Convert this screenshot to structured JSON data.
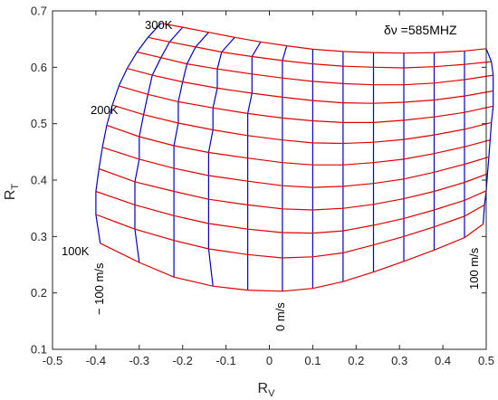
{
  "chart_data": {
    "type": "line",
    "title": "",
    "xlabel_main": "R",
    "xlabel_sub": "V",
    "ylabel_main": "R",
    "ylabel_sub": "T",
    "xlim": [
      -0.5,
      0.5
    ],
    "ylim": [
      0.1,
      0.7
    ],
    "xticks": [
      "-0.5",
      "-0.4",
      "-0.3",
      "-0.2",
      "-0.1",
      "0",
      "0.1",
      "0.2",
      "0.3",
      "0.4",
      "0.5"
    ],
    "yticks": [
      "0.1",
      "0.2",
      "0.3",
      "0.4",
      "0.5",
      "0.6",
      "0.7"
    ],
    "grid": false,
    "colors": {
      "temperature_lines": "#e00000",
      "velocity_lines": "#0000cc"
    },
    "temperature_lines": [
      {
        "name": "100K",
        "x": [
          -0.39,
          -0.3,
          -0.22,
          -0.13,
          -0.05,
          0.03,
          0.1,
          0.17,
          0.24,
          0.31,
          0.38,
          0.45,
          0.493
        ],
        "y": [
          0.288,
          0.254,
          0.228,
          0.212,
          0.205,
          0.203,
          0.208,
          0.22,
          0.237,
          0.256,
          0.276,
          0.298,
          0.322
        ]
      },
      {
        "x": [
          -0.4,
          -0.31,
          -0.22,
          -0.14,
          -0.05,
          0.03,
          0.1,
          0.17,
          0.24,
          0.31,
          0.38,
          0.45,
          0.496
        ],
        "y": [
          0.339,
          0.313,
          0.293,
          0.278,
          0.268,
          0.262,
          0.264,
          0.271,
          0.285,
          0.3,
          0.317,
          0.336,
          0.356
        ]
      },
      {
        "x": [
          -0.4,
          -0.31,
          -0.22,
          -0.14,
          -0.05,
          0.03,
          0.1,
          0.17,
          0.24,
          0.31,
          0.38,
          0.45,
          0.5
        ],
        "y": [
          0.38,
          0.356,
          0.337,
          0.323,
          0.313,
          0.307,
          0.306,
          0.31,
          0.32,
          0.332,
          0.347,
          0.364,
          0.381
        ]
      },
      {
        "x": [
          -0.393,
          -0.31,
          -0.22,
          -0.14,
          -0.05,
          0.03,
          0.1,
          0.17,
          0.24,
          0.31,
          0.38,
          0.45,
          0.503
        ],
        "y": [
          0.42,
          0.397,
          0.38,
          0.366,
          0.356,
          0.349,
          0.347,
          0.35,
          0.357,
          0.367,
          0.38,
          0.396,
          0.411
        ]
      },
      {
        "x": [
          -0.385,
          -0.3,
          -0.22,
          -0.14,
          -0.05,
          0.03,
          0.1,
          0.17,
          0.24,
          0.31,
          0.38,
          0.45,
          0.506
        ],
        "y": [
          0.458,
          0.437,
          0.421,
          0.408,
          0.398,
          0.39,
          0.387,
          0.389,
          0.394,
          0.402,
          0.414,
          0.428,
          0.441
        ]
      },
      {
        "x": [
          -0.375,
          -0.3,
          -0.22,
          -0.14,
          -0.05,
          0.03,
          0.1,
          0.17,
          0.24,
          0.31,
          0.38,
          0.45,
          0.509
        ],
        "y": [
          0.497,
          0.477,
          0.461,
          0.449,
          0.439,
          0.431,
          0.427,
          0.427,
          0.431,
          0.437,
          0.447,
          0.459,
          0.471
        ]
      },
      {
        "name": "200K",
        "x": [
          -0.362,
          -0.29,
          -0.21,
          -0.13,
          -0.05,
          0.03,
          0.1,
          0.17,
          0.24,
          0.31,
          0.38,
          0.45,
          0.512
        ],
        "y": [
          0.533,
          0.516,
          0.501,
          0.489,
          0.479,
          0.471,
          0.466,
          0.465,
          0.467,
          0.472,
          0.48,
          0.49,
          0.502
        ]
      },
      {
        "x": [
          -0.347,
          -0.28,
          -0.21,
          -0.13,
          -0.05,
          0.03,
          0.1,
          0.17,
          0.24,
          0.31,
          0.38,
          0.45,
          0.516
        ],
        "y": [
          0.567,
          0.552,
          0.539,
          0.528,
          0.518,
          0.51,
          0.505,
          0.502,
          0.502,
          0.506,
          0.512,
          0.52,
          0.531
        ]
      },
      {
        "x": [
          -0.328,
          -0.27,
          -0.2,
          -0.12,
          -0.04,
          0.03,
          0.1,
          0.17,
          0.24,
          0.31,
          0.38,
          0.45,
          0.516
        ],
        "y": [
          0.598,
          0.586,
          0.574,
          0.563,
          0.554,
          0.547,
          0.541,
          0.537,
          0.536,
          0.538,
          0.542,
          0.549,
          0.558
        ]
      },
      {
        "x": [
          -0.305,
          -0.25,
          -0.19,
          -0.12,
          -0.04,
          0.03,
          0.1,
          0.17,
          0.24,
          0.31,
          0.38,
          0.45,
          0.516
        ],
        "y": [
          0.627,
          0.617,
          0.606,
          0.597,
          0.588,
          0.581,
          0.575,
          0.571,
          0.569,
          0.569,
          0.572,
          0.578,
          0.586
        ]
      },
      {
        "x": [
          -0.28,
          -0.23,
          -0.17,
          -0.11,
          -0.04,
          0.03,
          0.1,
          0.17,
          0.24,
          0.31,
          0.38,
          0.45,
          0.512
        ],
        "y": [
          0.653,
          0.645,
          0.636,
          0.627,
          0.619,
          0.612,
          0.606,
          0.602,
          0.6,
          0.599,
          0.601,
          0.605,
          0.61
        ]
      },
      {
        "name": "300K",
        "x": [
          -0.25,
          -0.2,
          -0.14,
          -0.08,
          -0.02,
          0.04,
          0.1,
          0.17,
          0.24,
          0.31,
          0.38,
          0.45,
          0.5
        ],
        "y": [
          0.678,
          0.671,
          0.662,
          0.653,
          0.645,
          0.638,
          0.632,
          0.628,
          0.626,
          0.625,
          0.626,
          0.629,
          0.633
        ]
      }
    ],
    "velocity_lines": [
      {
        "name": "− 100 m/s",
        "x": [
          -0.39,
          -0.4,
          -0.4,
          -0.393,
          -0.385,
          -0.375,
          -0.362,
          -0.347,
          -0.328,
          -0.305,
          -0.28,
          -0.25
        ],
        "y": [
          0.288,
          0.339,
          0.38,
          0.42,
          0.458,
          0.497,
          0.533,
          0.567,
          0.598,
          0.627,
          0.653,
          0.678
        ]
      },
      {
        "x": [
          -0.3,
          -0.31,
          -0.31,
          -0.31,
          -0.3,
          -0.3,
          -0.29,
          -0.28,
          -0.27,
          -0.25,
          -0.23,
          -0.2
        ],
        "y": [
          0.254,
          0.313,
          0.356,
          0.397,
          0.437,
          0.477,
          0.516,
          0.552,
          0.586,
          0.617,
          0.645,
          0.671
        ]
      },
      {
        "x": [
          -0.22,
          -0.22,
          -0.22,
          -0.22,
          -0.22,
          -0.22,
          -0.21,
          -0.21,
          -0.2,
          -0.19,
          -0.17,
          -0.14
        ],
        "y": [
          0.228,
          0.293,
          0.337,
          0.38,
          0.421,
          0.461,
          0.501,
          0.539,
          0.574,
          0.606,
          0.636,
          0.662
        ]
      },
      {
        "x": [
          -0.13,
          -0.14,
          -0.14,
          -0.14,
          -0.14,
          -0.14,
          -0.13,
          -0.13,
          -0.12,
          -0.12,
          -0.11,
          -0.08
        ],
        "y": [
          0.212,
          0.278,
          0.323,
          0.366,
          0.408,
          0.449,
          0.489,
          0.528,
          0.563,
          0.597,
          0.627,
          0.653
        ]
      },
      {
        "x": [
          -0.05,
          -0.05,
          -0.05,
          -0.05,
          -0.05,
          -0.05,
          -0.05,
          -0.05,
          -0.04,
          -0.04,
          -0.04,
          -0.02
        ],
        "y": [
          0.205,
          0.268,
          0.313,
          0.356,
          0.398,
          0.439,
          0.479,
          0.518,
          0.554,
          0.588,
          0.619,
          0.645
        ]
      },
      {
        "name": "0 m/s",
        "x": [
          0.03,
          0.03,
          0.03,
          0.03,
          0.03,
          0.03,
          0.03,
          0.03,
          0.03,
          0.03,
          0.03,
          0.04
        ],
        "y": [
          0.203,
          0.262,
          0.307,
          0.349,
          0.39,
          0.431,
          0.471,
          0.51,
          0.547,
          0.581,
          0.612,
          0.638
        ]
      },
      {
        "x": [
          0.1,
          0.1,
          0.1,
          0.1,
          0.1,
          0.1,
          0.1,
          0.1,
          0.1,
          0.1,
          0.1,
          0.1
        ],
        "y": [
          0.208,
          0.264,
          0.306,
          0.347,
          0.387,
          0.427,
          0.466,
          0.505,
          0.541,
          0.575,
          0.606,
          0.632
        ]
      },
      {
        "x": [
          0.17,
          0.17,
          0.17,
          0.17,
          0.17,
          0.17,
          0.17,
          0.17,
          0.17,
          0.17,
          0.17,
          0.17
        ],
        "y": [
          0.22,
          0.271,
          0.31,
          0.35,
          0.389,
          0.427,
          0.465,
          0.502,
          0.537,
          0.571,
          0.602,
          0.628
        ]
      },
      {
        "x": [
          0.24,
          0.24,
          0.24,
          0.24,
          0.24,
          0.24,
          0.24,
          0.24,
          0.24,
          0.24,
          0.24,
          0.24
        ],
        "y": [
          0.237,
          0.285,
          0.32,
          0.357,
          0.394,
          0.431,
          0.467,
          0.502,
          0.536,
          0.569,
          0.6,
          0.626
        ]
      },
      {
        "x": [
          0.31,
          0.31,
          0.31,
          0.31,
          0.31,
          0.31,
          0.31,
          0.31,
          0.31,
          0.31,
          0.31,
          0.31
        ],
        "y": [
          0.256,
          0.3,
          0.332,
          0.367,
          0.402,
          0.437,
          0.472,
          0.506,
          0.538,
          0.569,
          0.599,
          0.625
        ]
      },
      {
        "x": [
          0.38,
          0.38,
          0.38,
          0.38,
          0.38,
          0.38,
          0.38,
          0.38,
          0.38,
          0.38,
          0.38,
          0.38
        ],
        "y": [
          0.276,
          0.317,
          0.347,
          0.38,
          0.414,
          0.447,
          0.48,
          0.512,
          0.542,
          0.572,
          0.601,
          0.626
        ]
      },
      {
        "x": [
          0.45,
          0.45,
          0.45,
          0.45,
          0.45,
          0.45,
          0.45,
          0.45,
          0.45,
          0.45,
          0.45,
          0.45
        ],
        "y": [
          0.298,
          0.336,
          0.364,
          0.396,
          0.428,
          0.459,
          0.49,
          0.52,
          0.549,
          0.578,
          0.605,
          0.629
        ]
      },
      {
        "name": "100 m/s",
        "x": [
          0.493,
          0.496,
          0.5,
          0.503,
          0.506,
          0.509,
          0.512,
          0.516,
          0.516,
          0.516,
          0.512,
          0.5
        ],
        "y": [
          0.322,
          0.356,
          0.381,
          0.411,
          0.441,
          0.471,
          0.502,
          0.531,
          0.558,
          0.586,
          0.61,
          0.633
        ]
      }
    ],
    "annotations": {
      "delta_nu": "δν =585MHZ"
    }
  }
}
